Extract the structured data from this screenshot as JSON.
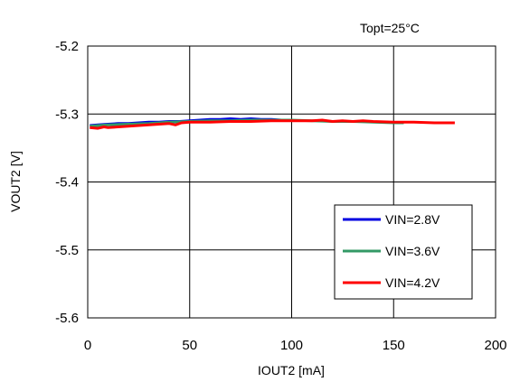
{
  "chart_data": {
    "type": "line",
    "title": "",
    "annotation": "Topt=25°C",
    "xlabel": "IOUT2 [mA]",
    "ylabel": "VOUT2 [V]",
    "xlim": [
      0,
      200
    ],
    "ylim": [
      -5.6,
      -5.2
    ],
    "xticks": [
      0,
      50,
      100,
      150,
      200
    ],
    "yticks": [
      -5.2,
      -5.3,
      -5.4,
      -5.5,
      -5.6
    ],
    "grid": true,
    "legend_position": "bottom-right",
    "series": [
      {
        "name": "VIN=2.8V",
        "color": "#0000e0",
        "x": [
          1,
          5,
          10,
          15,
          20,
          25,
          30,
          35,
          40,
          45,
          50,
          55,
          60,
          65,
          70,
          75,
          80,
          85,
          90,
          95,
          100
        ],
        "y": [
          -5.317,
          -5.316,
          -5.315,
          -5.314,
          -5.314,
          -5.313,
          -5.312,
          -5.312,
          -5.311,
          -5.311,
          -5.31,
          -5.309,
          -5.308,
          -5.308,
          -5.307,
          -5.308,
          -5.307,
          -5.308,
          -5.308,
          -5.309,
          -5.309
        ]
      },
      {
        "name": "VIN=3.6V",
        "color": "#339966",
        "x": [
          1,
          5,
          10,
          20,
          30,
          40,
          50,
          60,
          70,
          80,
          90,
          100,
          110,
          120,
          130,
          140,
          150,
          155
        ],
        "y": [
          -5.318,
          -5.317,
          -5.316,
          -5.315,
          -5.314,
          -5.312,
          -5.311,
          -5.31,
          -5.31,
          -5.309,
          -5.309,
          -5.309,
          -5.31,
          -5.311,
          -5.311,
          -5.312,
          -5.313,
          -5.313
        ]
      },
      {
        "name": "VIN=4.2V",
        "color": "#ff0000",
        "x": [
          1,
          5,
          8,
          10,
          15,
          20,
          25,
          30,
          35,
          40,
          43,
          46,
          50,
          60,
          70,
          80,
          90,
          100,
          110,
          115,
          120,
          125,
          130,
          135,
          140,
          150,
          160,
          170,
          180
        ],
        "y": [
          -5.32,
          -5.321,
          -5.319,
          -5.32,
          -5.319,
          -5.318,
          -5.317,
          -5.316,
          -5.315,
          -5.314,
          -5.316,
          -5.313,
          -5.312,
          -5.312,
          -5.311,
          -5.311,
          -5.31,
          -5.31,
          -5.31,
          -5.309,
          -5.311,
          -5.31,
          -5.311,
          -5.31,
          -5.311,
          -5.312,
          -5.312,
          -5.313,
          -5.313
        ]
      }
    ]
  }
}
